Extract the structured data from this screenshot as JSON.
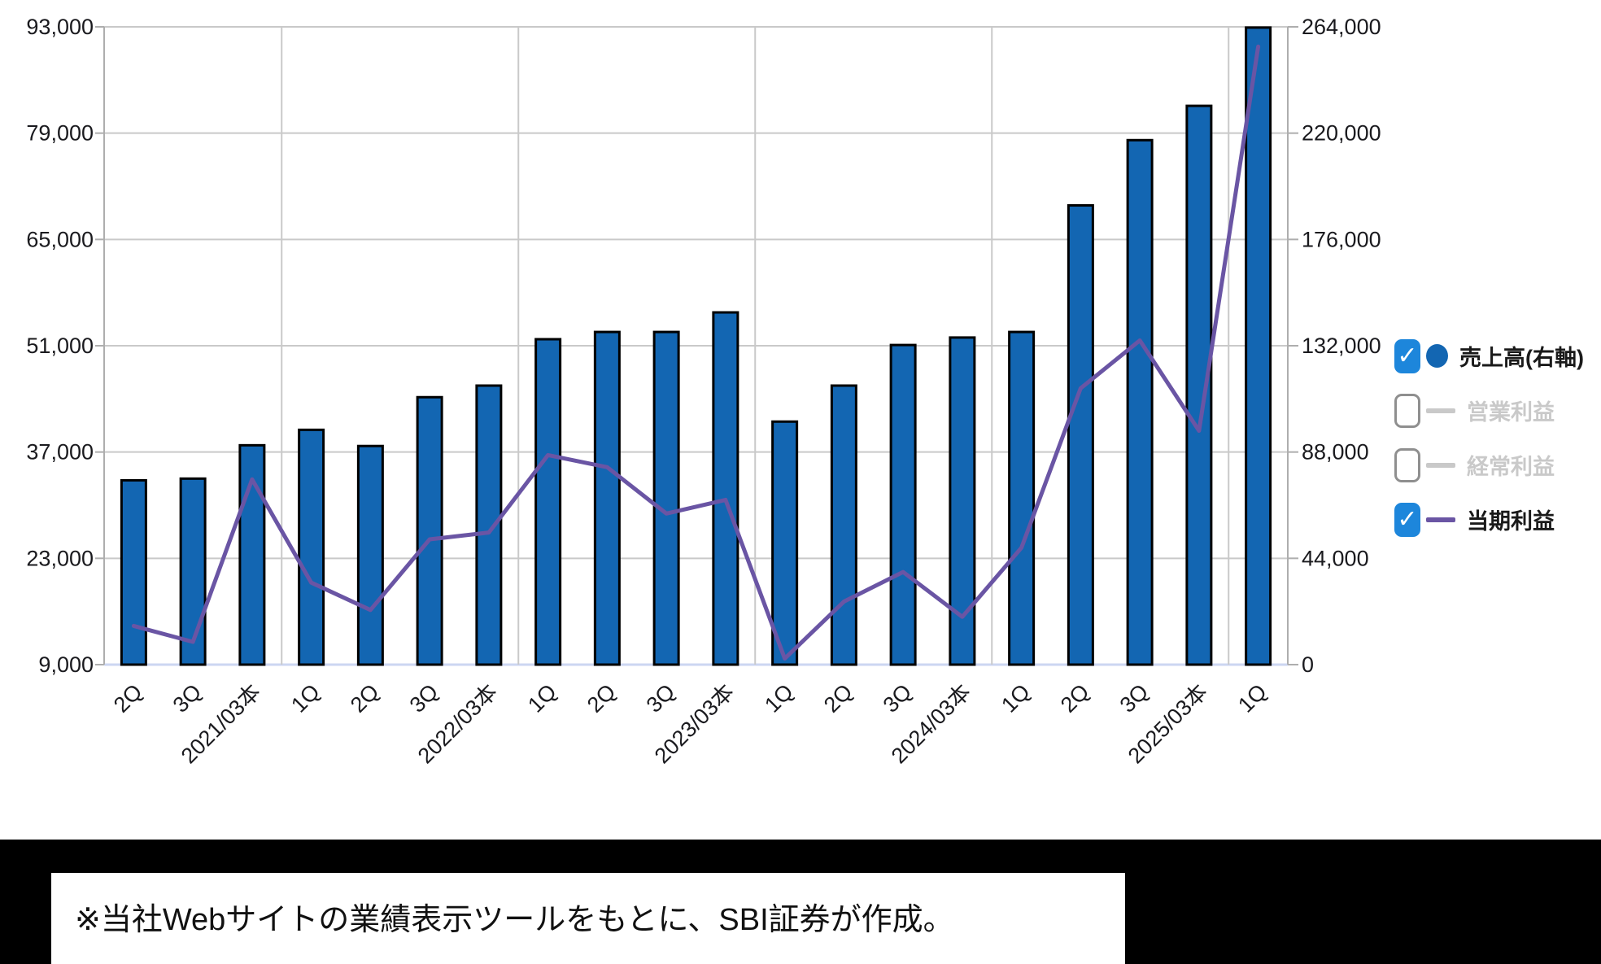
{
  "chart_data": {
    "type": "bar+line combo, quarterly financial results",
    "categories": [
      "2Q",
      "3Q",
      "2021/03本",
      "1Q",
      "2Q",
      "3Q",
      "2022/03本",
      "1Q",
      "2Q",
      "3Q",
      "2023/03本",
      "1Q",
      "2Q",
      "3Q",
      "2024/03本",
      "1Q",
      "2Q",
      "3Q",
      "2025/03本",
      "1Q"
    ],
    "series": [
      {
        "name": "売上高(右軸)",
        "type": "bar",
        "axis": "right",
        "color": "#1366b2",
        "stroke": "#000000",
        "values": [
          76300,
          77000,
          90800,
          97200,
          90500,
          110700,
          115500,
          134700,
          137700,
          137700,
          145800,
          100600,
          115500,
          132300,
          135400,
          137700,
          190100,
          217100,
          231300,
          263700
        ]
      },
      {
        "name": "当期利益",
        "type": "line",
        "axis": "left",
        "color": "#6a55a4",
        "values": [
          14100,
          12000,
          33400,
          19800,
          16200,
          25500,
          26400,
          36600,
          35000,
          28900,
          30700,
          9800,
          17300,
          21200,
          15300,
          24400,
          45400,
          51700,
          39800,
          90400
        ]
      }
    ],
    "hidden_series": [
      "営業利益",
      "経常利益"
    ],
    "left_axis": {
      "min": 9000,
      "max": 93000,
      "tick_labels": [
        "93,000",
        "79,000",
        "65,000",
        "51,000",
        "37,000",
        "23,000",
        "9,000"
      ]
    },
    "right_axis": {
      "min": 0,
      "max": 264000,
      "tick_labels": [
        "264,000",
        "220,000",
        "176,000",
        "132,000",
        "88,000",
        "44,000",
        "0"
      ]
    },
    "year_separator_slots": [
      3,
      7,
      11,
      15,
      19
    ],
    "grid": true,
    "legend_position": "right",
    "colors": {
      "grid": "#c9c9c9",
      "axis": "#aeaeae",
      "baseline": "#ccd6f2",
      "tick_text": "#1a1a1e",
      "bar": "#1366b2",
      "line": "#6a55a4"
    }
  },
  "legend": {
    "items": [
      {
        "label": "売上高(右軸)",
        "checked": true,
        "marker": "circle",
        "marker_color": "#1366b2",
        "text_color": "#1a1a1a"
      },
      {
        "label": "営業利益",
        "checked": false,
        "marker": "line",
        "marker_color": "#c9c9c9",
        "text_color": "#c9c9c9"
      },
      {
        "label": "経常利益",
        "checked": false,
        "marker": "line",
        "marker_color": "#c9c9c9",
        "text_color": "#c9c9c9"
      },
      {
        "label": "当期利益",
        "checked": true,
        "marker": "line",
        "marker_color": "#6a55a4",
        "text_color": "#1a1a1a"
      }
    ],
    "checkbox_on_color": "#1d86db",
    "check_glyph": "✓"
  },
  "footer": {
    "note": "※当社Webサイトの業績表示ツールをもとに、SBI証券が作成。"
  }
}
